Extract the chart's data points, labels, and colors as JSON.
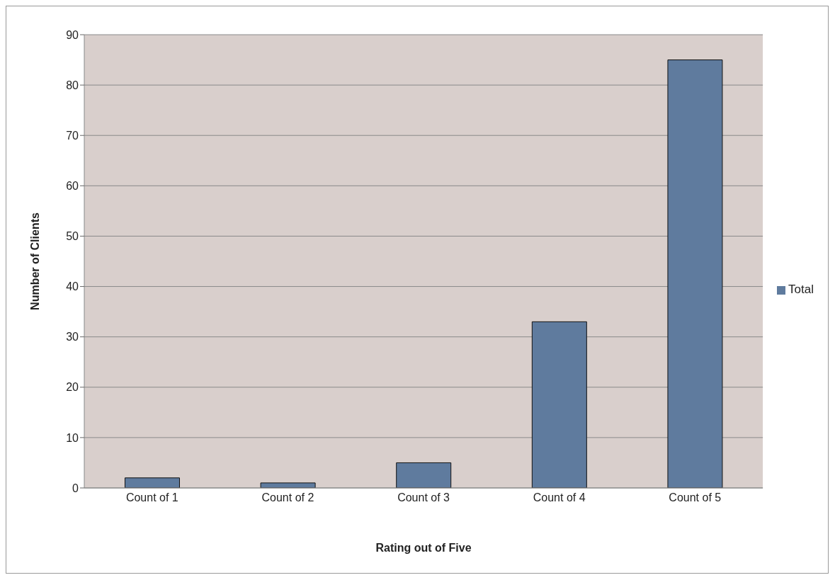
{
  "chart_data": {
    "type": "bar",
    "xlabel": "Rating out of Five",
    "ylabel": "Number of Clients",
    "categories": [
      "Count of 1",
      "Count of 2",
      "Count of 3",
      "Count of 4",
      "Count of 5"
    ],
    "series": [
      {
        "name": "Total",
        "color": "#5f7b9e",
        "values": [
          2,
          1,
          5,
          33,
          85
        ]
      }
    ],
    "ylim": [
      0,
      90
    ],
    "yticks": [
      0,
      10,
      20,
      30,
      40,
      50,
      60,
      70,
      80,
      90
    ],
    "grid": "y",
    "legend": "right"
  }
}
